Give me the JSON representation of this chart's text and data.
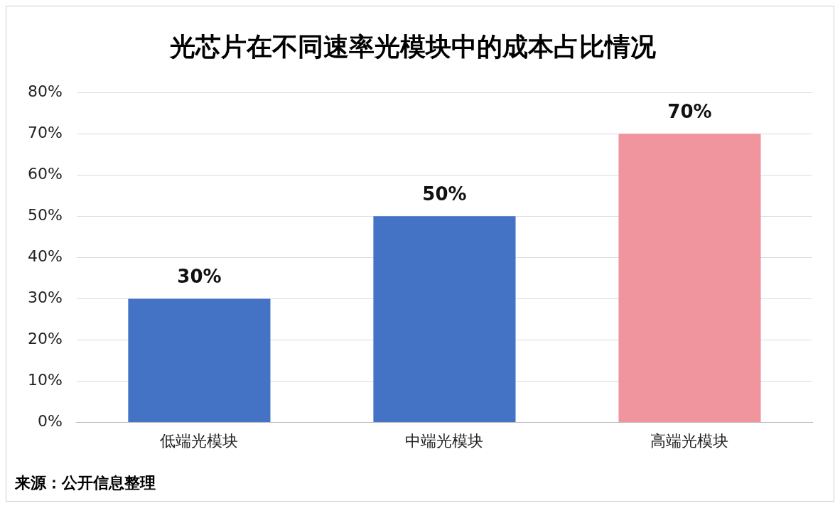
{
  "chart_data": {
    "type": "bar",
    "title": "光芯片在不同速率光模块中的成本占比情况",
    "categories": [
      "低端光模块",
      "中端光模块",
      "高端光模块"
    ],
    "values": [
      30,
      50,
      70
    ],
    "colors": [
      "#4472c4",
      "#4472c4",
      "#f0959e"
    ],
    "value_labels": [
      "30%",
      "50%",
      "70%"
    ],
    "ylim": [
      0,
      80
    ],
    "yticks": [
      {
        "value": 0,
        "label": "0%"
      },
      {
        "value": 10,
        "label": "10%"
      },
      {
        "value": 20,
        "label": "20%"
      },
      {
        "value": 30,
        "label": "30%"
      },
      {
        "value": 40,
        "label": "40%"
      },
      {
        "value": 50,
        "label": "50%"
      },
      {
        "value": 60,
        "label": "60%"
      },
      {
        "value": 70,
        "label": "70%"
      },
      {
        "value": 80,
        "label": "80%"
      }
    ],
    "grid": "y",
    "annotations": [
      "来源：公开信息整理"
    ]
  }
}
